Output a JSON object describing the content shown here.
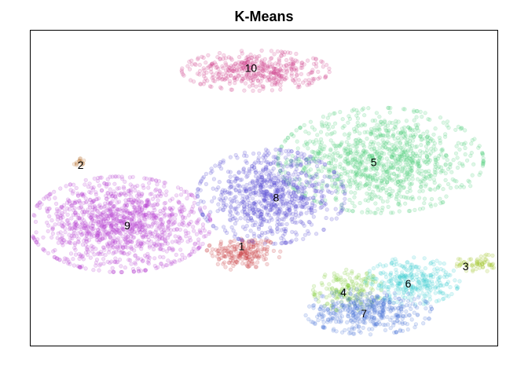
{
  "chart_data": {
    "type": "scatter",
    "title": "K-Means",
    "xlabel": "",
    "ylabel": "",
    "xlim": [
      0,
      100
    ],
    "ylim": [
      0,
      100
    ],
    "grid": false,
    "axes_ticks": false,
    "point_opacity": 0.18,
    "clusters": [
      {
        "label": "1",
        "color": "#c8383c",
        "center": [
          45.6,
          29.5
        ],
        "spread": [
          3.6,
          2.6
        ],
        "count": 200,
        "label_pos": [
          45.2,
          31.5
        ]
      },
      {
        "label": "2",
        "color": "#b8712a",
        "center": [
          10.4,
          58.0
        ],
        "spread": [
          0.7,
          0.9
        ],
        "count": 14,
        "label_pos": [
          10.7,
          57.3
        ]
      },
      {
        "label": "3",
        "color": "#9cc21e",
        "center": [
          96.3,
          26.1
        ],
        "spread": [
          2.4,
          1.3
        ],
        "count": 70,
        "label_pos": [
          93.2,
          25.2
        ]
      },
      {
        "label": "4",
        "color": "#7fce37",
        "center": [
          68.0,
          17.5
        ],
        "spread": [
          3.4,
          3.0
        ],
        "count": 170,
        "label_pos": [
          67.0,
          17.0
        ]
      },
      {
        "label": "5",
        "color": "#4fcf7a",
        "center": [
          75.0,
          58.8
        ],
        "spread": [
          10.0,
          7.6
        ],
        "count": 1100,
        "label_pos": [
          73.5,
          58.2
        ]
      },
      {
        "label": "6",
        "color": "#3fcfd0",
        "center": [
          81.8,
          20.5
        ],
        "spread": [
          4.6,
          3.4
        ],
        "count": 300,
        "label_pos": [
          80.9,
          19.7
        ]
      },
      {
        "label": "7",
        "color": "#4a74d6",
        "center": [
          72.4,
          10.8
        ],
        "spread": [
          6.2,
          3.3
        ],
        "count": 420,
        "label_pos": [
          71.4,
          10.2
        ]
      },
      {
        "label": "8",
        "color": "#5548d4",
        "center": [
          51.5,
          47.3
        ],
        "spread": [
          7.2,
          6.8
        ],
        "count": 850,
        "label_pos": [
          52.6,
          47.0
        ]
      },
      {
        "label": "9",
        "color": "#b842d2",
        "center": [
          19.2,
          38.5
        ],
        "spread": [
          8.8,
          6.9
        ],
        "count": 1250,
        "label_pos": [
          20.7,
          38.2
        ]
      },
      {
        "label": "10",
        "color": "#cf3d8a",
        "center": [
          48.2,
          87.3
        ],
        "spread": [
          7.2,
          2.9
        ],
        "count": 430,
        "label_pos": [
          47.2,
          88.2
        ]
      }
    ]
  }
}
